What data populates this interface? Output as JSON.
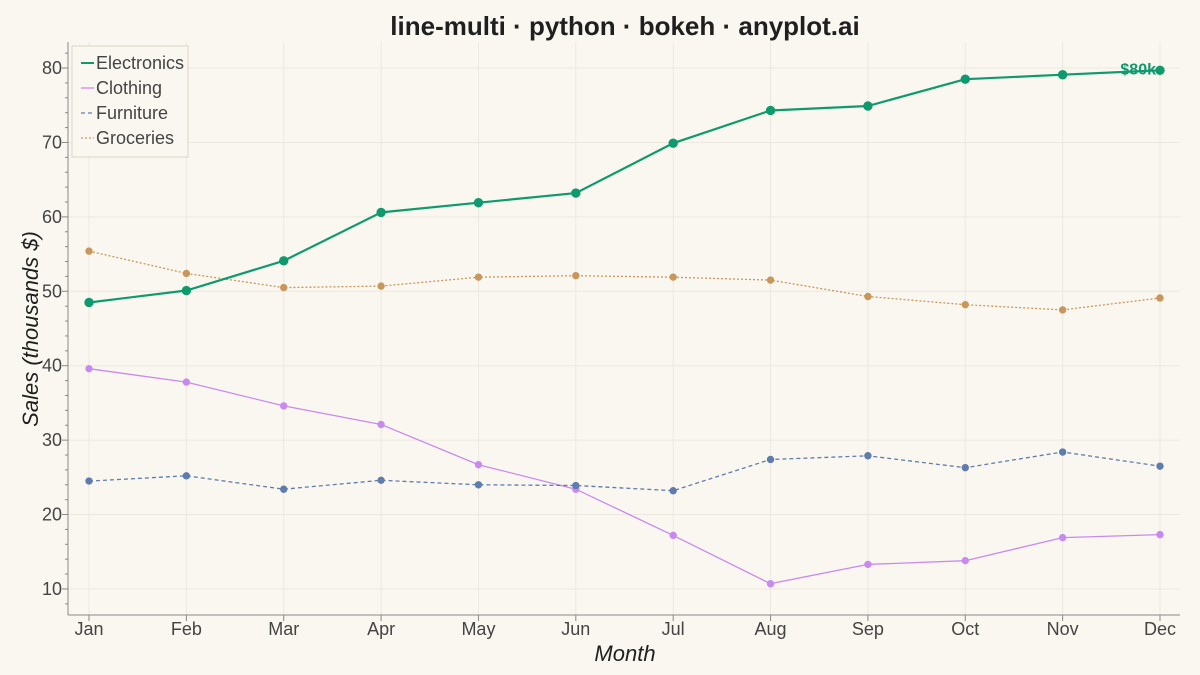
{
  "colors": {
    "background": "#faf7f1",
    "grid": "#ece8e0",
    "axis": "#888888"
  },
  "chart_data": {
    "type": "line",
    "title": "line-multi · python · bokeh · anyplot.ai",
    "xlabel": "Month",
    "ylabel": "Sales (thousands $)",
    "categories": [
      "Jan",
      "Feb",
      "Mar",
      "Apr",
      "May",
      "Jun",
      "Jul",
      "Aug",
      "Sep",
      "Oct",
      "Nov",
      "Dec"
    ],
    "ylim": [
      6.5,
      83.5
    ],
    "yticks": [
      10,
      20,
      30,
      40,
      50,
      60,
      70,
      80
    ],
    "grid": true,
    "legend_position": "top-left",
    "series": [
      {
        "name": "Electronics",
        "color": "#0f9a6e",
        "style": "solid",
        "emphasis": true,
        "values": [
          48.5,
          50.1,
          54.1,
          60.6,
          61.9,
          63.2,
          69.9,
          74.3,
          74.9,
          78.5,
          79.1,
          79.7
        ]
      },
      {
        "name": "Clothing",
        "color": "#c98af0",
        "style": "solid",
        "emphasis": false,
        "values": [
          39.6,
          37.8,
          34.6,
          32.1,
          26.7,
          23.4,
          17.2,
          10.7,
          13.3,
          13.8,
          16.9,
          17.3
        ]
      },
      {
        "name": "Furniture",
        "color": "#5f7dac",
        "style": "dashed",
        "emphasis": false,
        "values": [
          24.5,
          25.2,
          23.4,
          24.6,
          24.0,
          23.9,
          23.2,
          27.4,
          27.9,
          26.3,
          28.4,
          26.5
        ]
      },
      {
        "name": "Groceries",
        "color": "#c9975a",
        "style": "dotted",
        "emphasis": false,
        "values": [
          55.4,
          52.4,
          50.5,
          50.7,
          51.9,
          52.1,
          51.9,
          51.5,
          49.3,
          48.2,
          47.5,
          49.1
        ]
      }
    ],
    "annotations": [
      {
        "text": "$80k",
        "series": "Electronics",
        "category": "Dec",
        "color": "#0f9a6e"
      }
    ]
  }
}
